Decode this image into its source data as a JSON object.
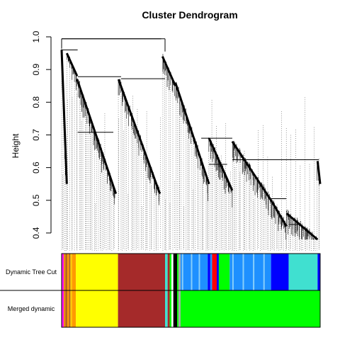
{
  "chart_data": {
    "type": "dendrogram",
    "title": "Cluster Dendrogram",
    "ylabel": "Height",
    "xlabel": "",
    "ylim": [
      0.35,
      1.0
    ],
    "y_ticks": [
      0.4,
      0.5,
      0.6,
      0.7,
      0.8,
      0.9,
      1.0
    ],
    "y_tick_labels": [
      "0.4",
      "0.5",
      "0.6",
      "0.7",
      "0.8",
      "0.9",
      "1.0"
    ],
    "root_height": 0.994,
    "merges": [
      {
        "left_start": 0.0,
        "left_end": 0.385,
        "height": 0.994
      },
      {
        "left_start": 0.0,
        "left_end": 0.062,
        "height": 0.96
      },
      {
        "left_start": 0.062,
        "left_end": 0.23,
        "height": 0.878
      },
      {
        "left_start": 0.23,
        "left_end": 0.4,
        "height": 0.872
      },
      {
        "left_start": 0.062,
        "left_end": 0.2,
        "height": 0.708
      },
      {
        "left_start": 0.2,
        "left_end": 0.2,
        "height": 0.622
      },
      {
        "left_start": 0.54,
        "left_end": 0.66,
        "height": 0.69
      },
      {
        "left_start": 0.57,
        "left_end": 0.64,
        "height": 0.61
      },
      {
        "left_start": 0.66,
        "left_end": 0.995,
        "height": 0.624
      },
      {
        "left_start": 0.81,
        "left_end": 0.87,
        "height": 0.505
      },
      {
        "left_start": 0.88,
        "left_end": 0.92,
        "height": 0.426
      }
    ],
    "color_rows": [
      {
        "label": "Dynamic Tree Cut",
        "segments": [
          {
            "from": 0.0,
            "to": 0.008,
            "color": "#ff00ff"
          },
          {
            "from": 0.008,
            "to": 0.012,
            "color": "#ff9900"
          },
          {
            "from": 0.012,
            "to": 0.016,
            "color": "#cc6600"
          },
          {
            "from": 0.016,
            "to": 0.022,
            "color": "#b5651d"
          },
          {
            "from": 0.022,
            "to": 0.028,
            "color": "#ff9900"
          },
          {
            "from": 0.028,
            "to": 0.034,
            "color": "#b5651d"
          },
          {
            "from": 0.034,
            "to": 0.04,
            "color": "#ffcc00"
          },
          {
            "from": 0.04,
            "to": 0.055,
            "color": "#ff9900"
          },
          {
            "from": 0.055,
            "to": 0.218,
            "color": "#ffff00"
          },
          {
            "from": 0.218,
            "to": 0.4,
            "color": "#a52a2a"
          },
          {
            "from": 0.4,
            "to": 0.41,
            "color": "#40e0d0"
          },
          {
            "from": 0.41,
            "to": 0.418,
            "color": "#a52a2a"
          },
          {
            "from": 0.418,
            "to": 0.425,
            "color": "#00ff00"
          },
          {
            "from": 0.425,
            "to": 0.432,
            "color": "#ffffff"
          },
          {
            "from": 0.432,
            "to": 0.447,
            "color": "#000000"
          },
          {
            "from": 0.447,
            "to": 0.452,
            "color": "#00ff00"
          },
          {
            "from": 0.452,
            "to": 0.46,
            "color": "#aaaaaa"
          },
          {
            "from": 0.46,
            "to": 0.565,
            "color": "#1e90ff"
          },
          {
            "from": 0.565,
            "to": 0.575,
            "color": "#0000ff"
          },
          {
            "from": 0.575,
            "to": 0.582,
            "color": "#1e90ff"
          },
          {
            "from": 0.582,
            "to": 0.6,
            "color": "#ff0000"
          },
          {
            "from": 0.6,
            "to": 0.608,
            "color": "#0000ff"
          },
          {
            "from": 0.608,
            "to": 0.65,
            "color": "#00ff00"
          },
          {
            "from": 0.65,
            "to": 0.81,
            "color": "#1e90ff"
          },
          {
            "from": 0.81,
            "to": 0.878,
            "color": "#0000ff"
          },
          {
            "from": 0.878,
            "to": 0.99,
            "color": "#40e0d0"
          },
          {
            "from": 0.99,
            "to": 1.0,
            "color": "#0000ff"
          }
        ]
      },
      {
        "label": "Merged dynamic",
        "segments": [
          {
            "from": 0.0,
            "to": 0.008,
            "color": "#ff00ff"
          },
          {
            "from": 0.008,
            "to": 0.012,
            "color": "#ff9900"
          },
          {
            "from": 0.012,
            "to": 0.016,
            "color": "#cc6600"
          },
          {
            "from": 0.016,
            "to": 0.022,
            "color": "#b5651d"
          },
          {
            "from": 0.022,
            "to": 0.028,
            "color": "#ff9900"
          },
          {
            "from": 0.028,
            "to": 0.034,
            "color": "#b5651d"
          },
          {
            "from": 0.034,
            "to": 0.04,
            "color": "#ffcc00"
          },
          {
            "from": 0.04,
            "to": 0.055,
            "color": "#ff9900"
          },
          {
            "from": 0.055,
            "to": 0.218,
            "color": "#ffff00"
          },
          {
            "from": 0.218,
            "to": 0.4,
            "color": "#a52a2a"
          },
          {
            "from": 0.4,
            "to": 0.41,
            "color": "#40e0d0"
          },
          {
            "from": 0.41,
            "to": 0.418,
            "color": "#a52a2a"
          },
          {
            "from": 0.418,
            "to": 0.425,
            "color": "#00ff00"
          },
          {
            "from": 0.425,
            "to": 0.432,
            "color": "#ffffff"
          },
          {
            "from": 0.432,
            "to": 0.447,
            "color": "#000000"
          },
          {
            "from": 0.447,
            "to": 0.452,
            "color": "#00ff00"
          },
          {
            "from": 0.452,
            "to": 0.46,
            "color": "#aaaaaa"
          },
          {
            "from": 0.46,
            "to": 1.0,
            "color": "#00ff00"
          }
        ]
      }
    ]
  }
}
